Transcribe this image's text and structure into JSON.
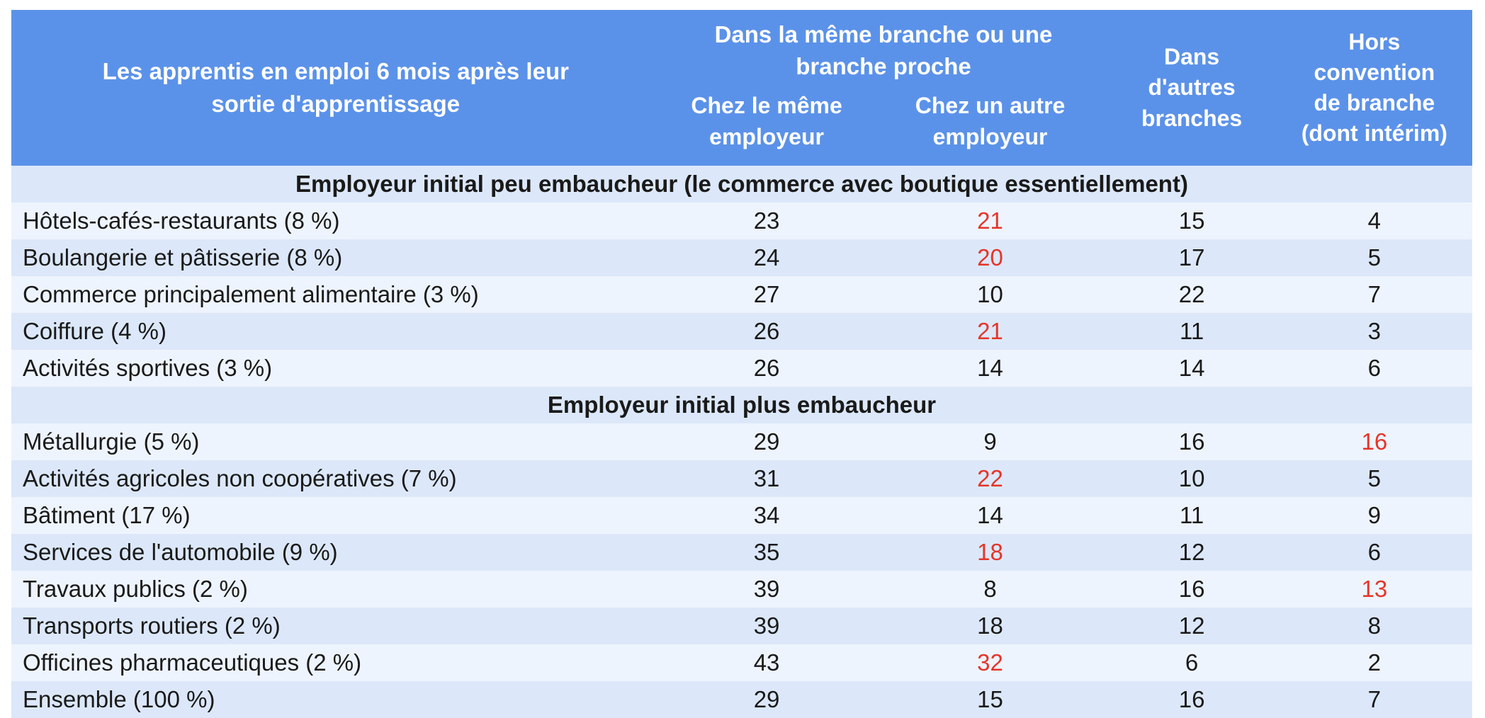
{
  "colors": {
    "header_bg": "#5b92e9",
    "header_text": "#ffffff",
    "row_light": "#eef4fd",
    "row_dark": "#dce8f9",
    "body_text": "#1a1a1a",
    "accent_red": "#e5352a"
  },
  "header": {
    "title": "Les apprentis en emploi 6 mois après leur sortie d'apprentissage",
    "group_same_branch": "Dans la même branche ou une branche proche",
    "col_same_employer": "Chez le même employeur",
    "col_other_employer": "Chez un autre employeur",
    "col_other_branches": "Dans d'autres branches",
    "col_hors_convention": "Hors convention de branche (dont intérim)"
  },
  "sections": [
    {
      "label": "Employeur initial peu embaucheur (le commerce avec boutique essentiellement)",
      "rows": [
        {
          "label": "Hôtels-cafés-restaurants (8 %)",
          "values": [
            {
              "v": "23",
              "red": false
            },
            {
              "v": "21",
              "red": true
            },
            {
              "v": "15",
              "red": false
            },
            {
              "v": "4",
              "red": false
            }
          ]
        },
        {
          "label": "Boulangerie et pâtisserie (8 %)",
          "values": [
            {
              "v": "24",
              "red": false
            },
            {
              "v": "20",
              "red": true
            },
            {
              "v": "17",
              "red": false
            },
            {
              "v": "5",
              "red": false
            }
          ]
        },
        {
          "label": "Commerce principalement alimentaire (3 %)",
          "values": [
            {
              "v": "27",
              "red": false
            },
            {
              "v": "10",
              "red": false
            },
            {
              "v": "22",
              "red": false
            },
            {
              "v": "7",
              "red": false
            }
          ]
        },
        {
          "label": "Coiffure (4 %)",
          "values": [
            {
              "v": "26",
              "red": false
            },
            {
              "v": "21",
              "red": true
            },
            {
              "v": "11",
              "red": false
            },
            {
              "v": "3",
              "red": false
            }
          ]
        },
        {
          "label": "Activités sportives (3 %)",
          "values": [
            {
              "v": "26",
              "red": false
            },
            {
              "v": "14",
              "red": false
            },
            {
              "v": "14",
              "red": false
            },
            {
              "v": "6",
              "red": false
            }
          ]
        }
      ]
    },
    {
      "label": "Employeur initial plus embaucheur",
      "rows": [
        {
          "label": "Métallurgie (5 %)",
          "values": [
            {
              "v": "29",
              "red": false
            },
            {
              "v": "9",
              "red": false
            },
            {
              "v": "16",
              "red": false
            },
            {
              "v": "16",
              "red": true
            }
          ]
        },
        {
          "label": "Activités agricoles non coopératives (7 %)",
          "values": [
            {
              "v": "31",
              "red": false
            },
            {
              "v": "22",
              "red": true
            },
            {
              "v": "10",
              "red": false
            },
            {
              "v": "5",
              "red": false
            }
          ]
        },
        {
          "label": "Bâtiment (17 %)",
          "values": [
            {
              "v": "34",
              "red": false
            },
            {
              "v": "14",
              "red": false
            },
            {
              "v": "11",
              "red": false
            },
            {
              "v": "9",
              "red": false
            }
          ]
        },
        {
          "label": "Services de l'automobile (9 %)",
          "values": [
            {
              "v": "35",
              "red": false
            },
            {
              "v": "18",
              "red": true
            },
            {
              "v": "12",
              "red": false
            },
            {
              "v": "6",
              "red": false
            }
          ]
        },
        {
          "label": "Travaux publics (2 %)",
          "values": [
            {
              "v": "39",
              "red": false
            },
            {
              "v": "8",
              "red": false
            },
            {
              "v": "16",
              "red": false
            },
            {
              "v": "13",
              "red": true
            }
          ]
        },
        {
          "label": "Transports routiers (2 %)",
          "values": [
            {
              "v": "39",
              "red": false
            },
            {
              "v": "18",
              "red": false
            },
            {
              "v": "12",
              "red": false
            },
            {
              "v": "8",
              "red": false
            }
          ]
        },
        {
          "label": "Officines pharmaceutiques (2 %)",
          "values": [
            {
              "v": "43",
              "red": false
            },
            {
              "v": "32",
              "red": true
            },
            {
              "v": "6",
              "red": false
            },
            {
              "v": "2",
              "red": false
            }
          ]
        },
        {
          "label": "Ensemble (100 %)",
          "values": [
            {
              "v": "29",
              "red": false
            },
            {
              "v": "15",
              "red": false
            },
            {
              "v": "16",
              "red": false
            },
            {
              "v": "7",
              "red": false
            }
          ]
        }
      ]
    }
  ],
  "chart_data": {
    "type": "table",
    "title": "Les apprentis en emploi 6 mois après leur sortie d'apprentissage",
    "columns": [
      "Dans la même branche ou une branche proche — Chez le même employeur",
      "Dans la même branche ou une branche proche — Chez un autre employeur",
      "Dans d'autres branches",
      "Hors convention de branche (dont intérim)"
    ],
    "section_1": {
      "label": "Employeur initial peu embaucheur (le commerce avec boutique essentiellement)",
      "rows": [
        {
          "category": "Hôtels-cafés-restaurants (8 %)",
          "values": [
            23,
            21,
            15,
            4
          ],
          "red_highlight_indices": [
            1
          ]
        },
        {
          "category": "Boulangerie et pâtisserie (8 %)",
          "values": [
            24,
            20,
            17,
            5
          ],
          "red_highlight_indices": [
            1
          ]
        },
        {
          "category": "Commerce principalement alimentaire (3 %)",
          "values": [
            27,
            10,
            22,
            7
          ],
          "red_highlight_indices": []
        },
        {
          "category": "Coiffure (4 %)",
          "values": [
            26,
            21,
            11,
            3
          ],
          "red_highlight_indices": [
            1
          ]
        },
        {
          "category": "Activités sportives (3 %)",
          "values": [
            26,
            14,
            14,
            6
          ],
          "red_highlight_indices": []
        }
      ]
    },
    "section_2": {
      "label": "Employeur initial plus embaucheur",
      "rows": [
        {
          "category": "Métallurgie (5 %)",
          "values": [
            29,
            9,
            16,
            16
          ],
          "red_highlight_indices": [
            3
          ]
        },
        {
          "category": "Activités agricoles non coopératives (7 %)",
          "values": [
            31,
            22,
            10,
            5
          ],
          "red_highlight_indices": [
            1
          ]
        },
        {
          "category": "Bâtiment (17 %)",
          "values": [
            34,
            14,
            11,
            9
          ],
          "red_highlight_indices": []
        },
        {
          "category": "Services de l'automobile (9 %)",
          "values": [
            35,
            18,
            12,
            6
          ],
          "red_highlight_indices": [
            1
          ]
        },
        {
          "category": "Travaux publics (2 %)",
          "values": [
            39,
            8,
            16,
            13
          ],
          "red_highlight_indices": [
            3
          ]
        },
        {
          "category": "Transports routiers (2 %)",
          "values": [
            39,
            18,
            12,
            8
          ],
          "red_highlight_indices": []
        },
        {
          "category": "Officines pharmaceutiques (2 %)",
          "values": [
            43,
            32,
            6,
            2
          ],
          "red_highlight_indices": [
            1
          ]
        },
        {
          "category": "Ensemble (100 %)",
          "values": [
            29,
            15,
            16,
            7
          ],
          "red_highlight_indices": []
        }
      ]
    }
  }
}
